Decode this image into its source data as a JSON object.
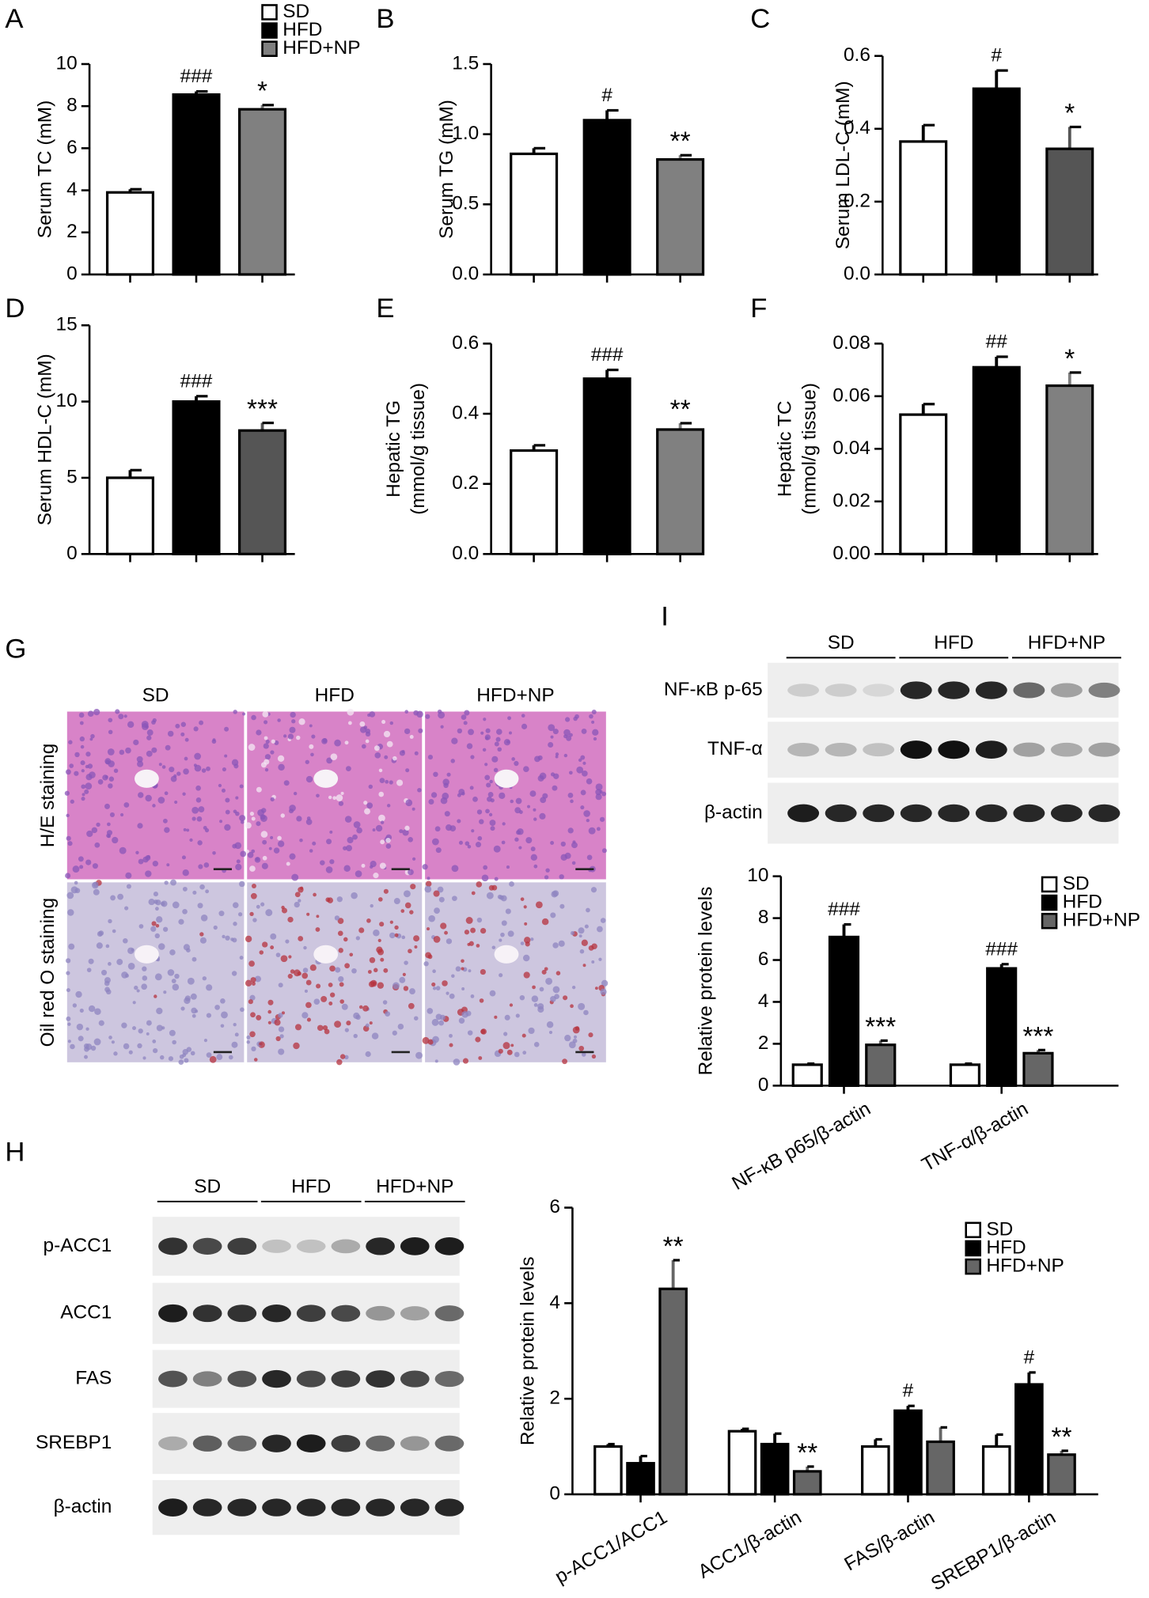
{
  "chart_data": [
    {
      "type": "bar",
      "panel": "A",
      "ylabel": [
        "Serum TC (mM)"
      ],
      "categories": [
        null
      ],
      "ylim": [
        0,
        10
      ],
      "yticks": [
        0,
        2,
        4,
        6,
        8,
        10
      ],
      "legend": "top-right",
      "series": [
        {
          "name": "SD",
          "color": "#ffffff",
          "values": [
            3.9
          ],
          "errors": [
            0.15
          ]
        },
        {
          "name": "HFD",
          "color": "#000000",
          "values": [
            8.55
          ],
          "errors": [
            0.15
          ],
          "annotations": [
            "###"
          ]
        },
        {
          "name": "HFD+NP",
          "color": "#808080",
          "values": [
            7.85
          ],
          "errors": [
            0.2
          ],
          "annotations": [
            "*"
          ]
        }
      ]
    },
    {
      "type": "bar",
      "panel": "B",
      "ylabel": [
        "Serum TG (mM)"
      ],
      "categories": [
        null
      ],
      "ylim": [
        0,
        1.5
      ],
      "yticks": [
        {
          "value": 0,
          "label": "0.0"
        },
        0.5,
        {
          "value": 1,
          "label": "1.0"
        },
        1.5
      ],
      "series": [
        {
          "color": "#ffffff",
          "values": [
            0.86
          ],
          "errors": [
            0.04
          ]
        },
        {
          "color": "#000000",
          "values": [
            1.1
          ],
          "errors": [
            0.07
          ],
          "annotations": [
            "#"
          ]
        },
        {
          "color": "#808080",
          "values": [
            0.82
          ],
          "errors": [
            0.03
          ],
          "annotations": [
            "**"
          ]
        }
      ]
    },
    {
      "type": "bar",
      "panel": "C",
      "ylabel": [
        "Serum LDL-C (mM)"
      ],
      "categories": [
        null
      ],
      "ylim": [
        0,
        0.6
      ],
      "yticks": [
        {
          "value": 0,
          "label": "0.0"
        },
        0.2,
        0.4,
        0.6
      ],
      "series": [
        {
          "color": "#ffffff",
          "values": [
            0.365
          ],
          "errors": [
            0.045
          ]
        },
        {
          "color": "#000000",
          "values": [
            0.51
          ],
          "errors": [
            0.05
          ],
          "annotations": [
            "#"
          ]
        },
        {
          "color": "#555555",
          "values": [
            0.345
          ],
          "errors": [
            0.06
          ],
          "annotations": [
            "*"
          ]
        }
      ]
    },
    {
      "type": "bar",
      "panel": "D",
      "ylabel": [
        "Serum HDL-C (mM)"
      ],
      "categories": [
        null
      ],
      "ylim": [
        0,
        15
      ],
      "yticks": [
        0,
        5,
        10,
        15
      ],
      "series": [
        {
          "color": "#ffffff",
          "values": [
            5.0
          ],
          "errors": [
            0.5
          ]
        },
        {
          "color": "#000000",
          "values": [
            10.0
          ],
          "errors": [
            0.35
          ],
          "annotations": [
            "###"
          ]
        },
        {
          "color": "#555555",
          "values": [
            8.1
          ],
          "errors": [
            0.5
          ],
          "annotations": [
            "***"
          ]
        }
      ]
    },
    {
      "type": "bar",
      "panel": "E",
      "ylabel": [
        "Hepatic TG",
        "(mmol/g tissue)"
      ],
      "categories": [
        null
      ],
      "ylim": [
        0,
        0.6
      ],
      "yticks": [
        {
          "value": 0,
          "label": "0.0"
        },
        0.2,
        0.4,
        0.6
      ],
      "series": [
        {
          "color": "#ffffff",
          "values": [
            0.295
          ],
          "errors": [
            0.015
          ]
        },
        {
          "color": "#000000",
          "values": [
            0.5
          ],
          "errors": [
            0.025
          ],
          "annotations": [
            "###"
          ]
        },
        {
          "color": "#808080",
          "values": [
            0.355
          ],
          "errors": [
            0.018
          ],
          "annotations": [
            "**"
          ]
        }
      ]
    },
    {
      "type": "bar",
      "panel": "F",
      "ylabel": [
        "Hepatic TC",
        "(mmol/g tissue)"
      ],
      "categories": [
        null
      ],
      "ylim": [
        0,
        0.08
      ],
      "yticks": [
        {
          "value": 0,
          "label": "0.00"
        },
        {
          "value": 0.02,
          "label": "0.02"
        },
        {
          "value": 0.04,
          "label": "0.04"
        },
        {
          "value": 0.06,
          "label": "0.06"
        },
        {
          "value": 0.08,
          "label": "0.08"
        }
      ],
      "series": [
        {
          "color": "#ffffff",
          "values": [
            0.053
          ],
          "errors": [
            0.004
          ]
        },
        {
          "color": "#000000",
          "values": [
            0.071
          ],
          "errors": [
            0.004
          ],
          "annotations": [
            "##"
          ]
        },
        {
          "color": "#808080",
          "values": [
            0.064
          ],
          "errors": [
            0.005
          ],
          "annotations": [
            "*"
          ]
        }
      ]
    },
    {
      "type": "bar",
      "ylabel": [
        "Relative protein levels"
      ],
      "categories": [
        "NF-κB p65/β-actin",
        "TNF-α/β-actin"
      ],
      "ylim": [
        0,
        10
      ],
      "yticks": [
        0,
        2,
        4,
        6,
        8,
        10
      ],
      "legend": "top-right",
      "series": [
        {
          "name": "SD",
          "color": "#ffffff",
          "values": [
            1.0,
            1.0
          ],
          "errors": [
            0.05,
            0.05
          ]
        },
        {
          "name": "HFD",
          "color": "#000000",
          "values": [
            7.1,
            5.6
          ],
          "errors": [
            0.6,
            0.2
          ],
          "annotations": [
            "###",
            "###"
          ]
        },
        {
          "name": "HFD+NP",
          "color": "#666666",
          "values": [
            1.95,
            1.55
          ],
          "errors": [
            0.2,
            0.15
          ],
          "annotations": [
            "***",
            "***"
          ]
        }
      ]
    },
    {
      "type": "bar",
      "ylabel": [
        "Relative protein levels"
      ],
      "categories": [
        "p-ACC1/ACC1",
        "ACC1/β-actin",
        "FAS/β-actin",
        "SREBP1/β-actin"
      ],
      "ylim": [
        0,
        6
      ],
      "yticks": [
        0,
        2,
        4,
        6
      ],
      "legend": "top-right",
      "series": [
        {
          "name": "SD",
          "color": "#ffffff",
          "values": [
            1.0,
            1.32,
            1.0,
            1.0
          ],
          "errors": [
            0.05,
            0.05,
            0.15,
            0.25
          ]
        },
        {
          "name": "HFD",
          "color": "#000000",
          "values": [
            0.65,
            1.05,
            1.75,
            2.3
          ],
          "errors": [
            0.15,
            0.22,
            0.1,
            0.25
          ],
          "annotations": [
            null,
            null,
            "#",
            "#"
          ]
        },
        {
          "name": "HFD+NP",
          "color": "#666666",
          "values": [
            4.3,
            0.48,
            1.1,
            0.83
          ],
          "errors": [
            0.6,
            0.1,
            0.3,
            0.08
          ],
          "annotations": [
            "**",
            "**",
            null,
            "**"
          ]
        }
      ]
    }
  ],
  "histology": {
    "panel": "G",
    "columns": [
      "SD",
      "HFD",
      "HFD+NP"
    ],
    "rows": [
      "H/E  staining",
      "Oil red O staining"
    ]
  },
  "blot_i": {
    "panel": "I",
    "groups": [
      "SD",
      "HFD",
      "HFD+NP"
    ],
    "rows": [
      "NF-κB p-65",
      "TNF-α",
      "β-actin"
    ]
  },
  "blot_h": {
    "panel": "H",
    "groups": [
      "SD",
      "HFD",
      "HFD+NP"
    ],
    "rows": [
      "p-ACC1",
      "ACC1",
      "FAS",
      "SREBP1",
      "β-actin"
    ]
  }
}
